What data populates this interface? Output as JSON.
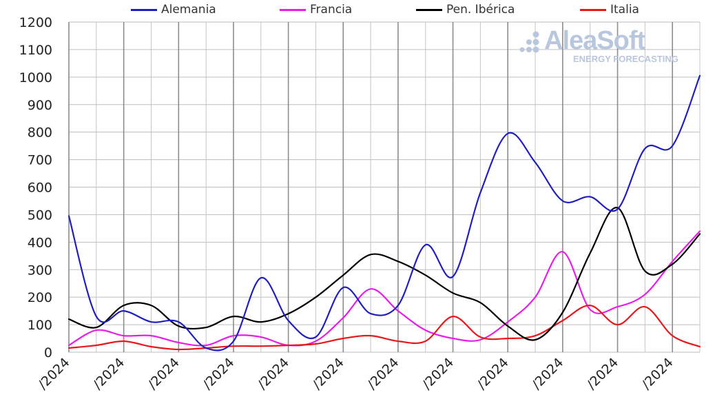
{
  "chart_data": {
    "type": "line",
    "title": "",
    "xlabel": "",
    "ylabel": "",
    "ylim": [
      0,
      1200
    ],
    "yticks": [
      0,
      100,
      200,
      300,
      400,
      500,
      600,
      700,
      800,
      900,
      1000,
      1100,
      1200
    ],
    "x_tick_labels": [
      "/2024",
      "/2024",
      "/2024",
      "/2024",
      "/2024",
      "/2024",
      "/2024",
      "/2024",
      "/2024",
      "/2024",
      "/2024",
      "/2024"
    ],
    "grid": true,
    "legend_position": "top",
    "series": [
      {
        "name": "Alemania",
        "color": "#1f1fbf",
        "values": [
          495,
          130,
          150,
          110,
          110,
          15,
          40,
          270,
          115,
          55,
          235,
          140,
          170,
          390,
          275,
          580,
          795,
          690,
          550,
          565,
          520,
          740,
          750,
          1005
        ]
      },
      {
        "name": "Francia",
        "color": "#e81ee8",
        "values": [
          25,
          80,
          60,
          60,
          35,
          25,
          60,
          55,
          25,
          40,
          125,
          230,
          150,
          80,
          50,
          45,
          110,
          200,
          365,
          155,
          165,
          210,
          330,
          440
        ]
      },
      {
        "name": "Pen. Ibérica",
        "color": "#000000",
        "values": [
          120,
          90,
          170,
          170,
          95,
          90,
          130,
          110,
          140,
          200,
          280,
          355,
          330,
          280,
          215,
          180,
          95,
          45,
          145,
          360,
          525,
          295,
          320,
          430
        ]
      },
      {
        "name": "Italia",
        "color": "#e8171a",
        "values": [
          15,
          25,
          40,
          20,
          10,
          15,
          22,
          22,
          25,
          30,
          50,
          60,
          40,
          40,
          130,
          55,
          50,
          60,
          115,
          170,
          100,
          165,
          60,
          20
        ]
      }
    ]
  },
  "logo": {
    "name": "AleaSoft",
    "tagline": "ENERGY FORECASTING",
    "color": "#b8c7de"
  }
}
